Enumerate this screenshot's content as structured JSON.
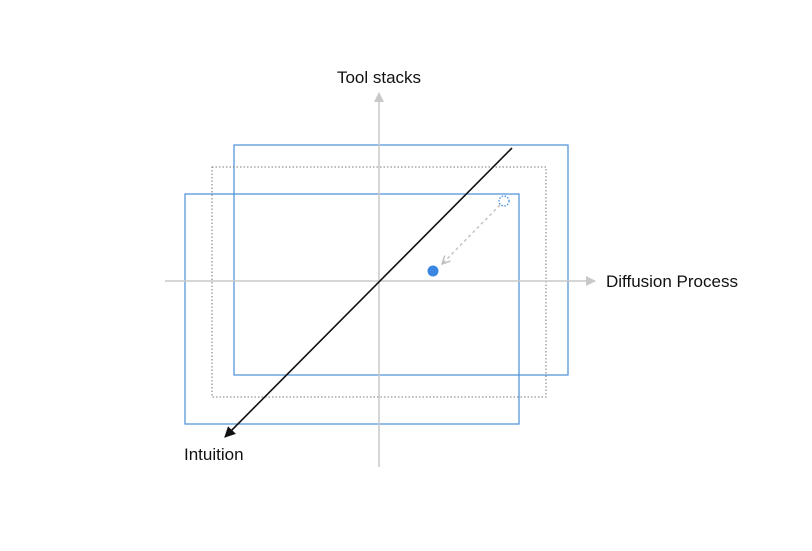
{
  "axes": {
    "vertical_label": "Tool stacks",
    "horizontal_label": "Diffusion Process",
    "diagonal_label": "Intuition"
  },
  "colors": {
    "background": "#ffffff",
    "axis": "#c8c8c8",
    "frame": "#4a90d9",
    "frame_dotted": "#7a7a7a",
    "point": "#3a86e0",
    "diagonal": "#111111",
    "text": "#111111"
  }
}
